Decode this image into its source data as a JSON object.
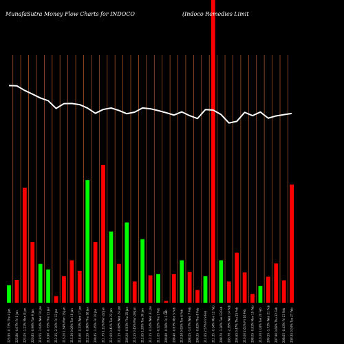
{
  "chart_data": {
    "type": "bar",
    "title": "MunafaSutra Money Flow Charts for INDOCO",
    "subtitle": "(Indoco Remedies Limit",
    "x_axis_mid_label": "(f)",
    "categories": [
      "209.35 0.04% Tue 27 Feb",
      "208.65 -0.43% Fri 23 Feb",
      "207.90 0.66% Thu 22 Feb",
      "206.55 -1.73% Wed 21 Feb",
      "210.20 1.04% Tue 20 Feb",
      "208.05 -0.93% Mon 19 Feb",
      "210.00 2.61% Fri 16 Feb",
      "204.65 0.47% Thu 15 Feb",
      "203.70 -2.39% Wed 14 Feb",
      "208.70 -1.26% Tue 13 Feb",
      "211.35 -0.14% Mon 12 Feb",
      "211.65 2.57% Fri 9 Feb",
      "206.35 -0.82% Thu 8 Feb",
      "208.05 -1.07% Wed 7 Feb",
      "210.30 0.92% Tue 6 Feb",
      "208.40 -0.67% Mon 5 Feb",
      "209.80 -0.58% Fri 2 Feb",
      "211.05 -0.52% Thu 1 Feb",
      "212.15 -0.24% Wed 31 Jan",
      "212.65 1.20% Tue 30 Jan",
      "210.15 0.45% Mon 29 Jan",
      "209.20 -0.93% Thu 25 Jan",
      "211.15 -0.68% Wed 24 Jan",
      "212.60 0.41% Tue 23 Jan",
      "211.75 1.11% Mon 22 Jan",
      "209.45 -1.45% Fri 19 Jan",
      "212.55 -0.96% Thu 18 Jan",
      "214.60 -0.33% Wed 17 Jan",
      "215.30 0.06% Tue 16 Jan",
      "215.20 1.34% Mon 15 Jan",
      "212.35 -2.10% Fri 12 Jan",
      "216.90 -0.75% Thu 11 Jan",
      "218.55 -1.04% Wed 10 Jan",
      "220.85 -0.99% Tue 9 Jan",
      "223.05 -1.21% Mon 8 Jan",
      "225.80 -0.07% Fri 5 Jan",
      "225.95 -0.73% Thu 4 Jan"
    ],
    "close": [
      209.35,
      208.65,
      207.9,
      206.55,
      210.2,
      208.05,
      210.0,
      204.65,
      203.7,
      208.7,
      211.35,
      211.65,
      206.35,
      208.05,
      210.3,
      208.4,
      209.8,
      211.05,
      212.15,
      212.65,
      210.15,
      209.2,
      211.15,
      212.6,
      211.75,
      209.45,
      212.55,
      214.6,
      215.3,
      215.2,
      212.35,
      216.9,
      218.55,
      220.85,
      223.05,
      225.8,
      225.95
    ],
    "flow_direction": [
      "green",
      "red",
      "red",
      "red",
      "green",
      "green",
      "red",
      "red",
      "red",
      "red",
      "green",
      "red",
      "red",
      "green",
      "red",
      "green",
      "red",
      "green",
      "red",
      "green",
      "red",
      "red",
      "green",
      "red",
      "red",
      "green",
      "red",
      "green",
      "red",
      "red",
      "red",
      "red",
      "green",
      "red",
      "red",
      "red",
      "red"
    ],
    "volume": [
      5.8,
      7.5,
      38.0,
      20.0,
      12.8,
      11.0,
      2.2,
      8.8,
      14.0,
      10.5,
      40.5,
      20.0,
      45.5,
      23.5,
      12.8,
      26.5,
      7.0,
      21.0,
      9.0,
      9.5,
      0.6,
      9.5,
      14.0,
      10.2,
      4.2,
      8.8,
      100,
      14.0,
      7.0,
      16.5,
      10.0,
      2.9,
      5.5,
      8.6,
      13.0,
      7.4,
      39.0
    ],
    "ylim_volume": [
      0,
      100
    ],
    "ylim_price": [
      195,
      240
    ],
    "colors": {
      "up": "#00ff00",
      "down": "#ff0000",
      "grid": "#a0522d",
      "price_line": "#ffffff",
      "background": "#000000"
    },
    "grid": true,
    "legend": "none"
  }
}
